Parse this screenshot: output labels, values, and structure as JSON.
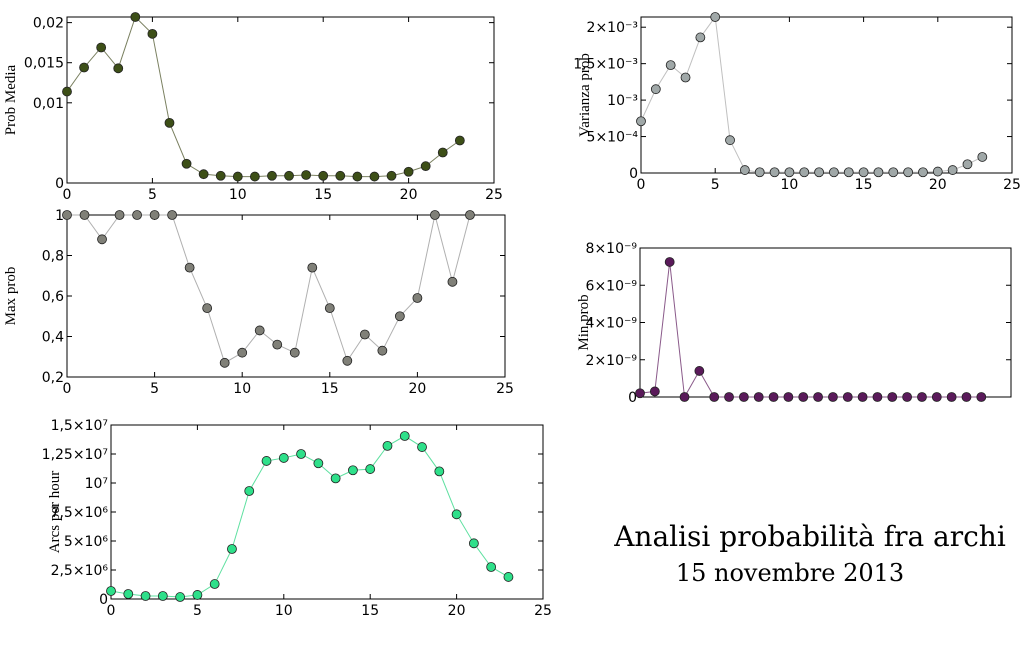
{
  "figure_title": "Analisi probabilità fra archi",
  "figure_subtitle": "15 novembre 2013",
  "chart_data": [
    {
      "type": "line",
      "y_label": "Prob Media",
      "color": "#3d4f17",
      "line_color": "#7a8060",
      "x": [
        0,
        1,
        2,
        3,
        4,
        5,
        6,
        7,
        8,
        9,
        10,
        11,
        12,
        13,
        14,
        15,
        16,
        17,
        18,
        19,
        20,
        21,
        22,
        23
      ],
      "values": [
        0.0114,
        0.0144,
        0.0169,
        0.0143,
        0.0207,
        0.0186,
        0.0075,
        0.0024,
        0.0011,
        0.0009,
        0.0008,
        0.0008,
        0.0009,
        0.0009,
        0.001,
        0.0009,
        0.0009,
        0.0008,
        0.0008,
        0.0009,
        0.0014,
        0.0021,
        0.0038,
        0.0053
      ],
      "xlim": [
        0,
        25
      ],
      "xticks": [
        0,
        5,
        10,
        15,
        20,
        25
      ],
      "ylim": [
        0,
        0.0207
      ],
      "yticks": [
        0,
        {
          "value": 0.01,
          "label": "0,01"
        },
        {
          "value": 0.015,
          "label": "0,015"
        },
        {
          "value": 0.02,
          "label": "0,02"
        }
      ]
    },
    {
      "type": "line",
      "y_label": "Max prob",
      "color": "#808078",
      "line_color": "#b0b0b0",
      "x": [
        0,
        1,
        2,
        3,
        4,
        5,
        6,
        7,
        8,
        9,
        10,
        11,
        12,
        13,
        14,
        15,
        16,
        17,
        18,
        19,
        20,
        21,
        22,
        23
      ],
      "values": [
        1,
        1,
        0.88,
        1,
        1,
        1,
        1,
        0.74,
        0.54,
        0.27,
        0.32,
        0.43,
        0.36,
        0.32,
        0.74,
        0.54,
        0.28,
        0.41,
        0.33,
        0.5,
        0.59,
        1,
        0.67,
        1
      ],
      "xlim": [
        0,
        25
      ],
      "xticks": [
        0,
        5,
        10,
        15,
        20,
        25
      ],
      "ylim": [
        0.2,
        1
      ],
      "yticks": [
        {
          "value": 0.2,
          "label": "0,2"
        },
        {
          "value": 0.4,
          "label": "0,4"
        },
        {
          "value": 0.6,
          "label": "0,6"
        },
        {
          "value": 0.8,
          "label": "0,8"
        },
        1
      ]
    },
    {
      "type": "line",
      "y_label": "Arcs per hour",
      "color": "#2ee08a",
      "line_color": "#5ee0a0",
      "x": [
        0,
        1,
        2,
        3,
        4,
        5,
        6,
        7,
        8,
        9,
        10,
        11,
        12,
        13,
        14,
        15,
        16,
        17,
        18,
        19,
        20,
        21,
        22,
        23
      ],
      "values": [
        690000,
        430000,
        260000,
        260000,
        170000,
        350000,
        1290000,
        4310000,
        9310000,
        11900000,
        12160000,
        12500000,
        11700000,
        10400000,
        11100000,
        11200000,
        13200000,
        14050000,
        13100000,
        11000000,
        7300000,
        4800000,
        2760000,
        1900000
      ],
      "xlim": [
        0,
        25
      ],
      "xticks": [
        0,
        5,
        10,
        15,
        20,
        25
      ],
      "ylim": [
        0,
        15000000
      ],
      "yticks": [
        0,
        {
          "value": 2500000,
          "label": "2,5×10⁶"
        },
        {
          "value": 5000000,
          "label": "5×10⁶"
        },
        {
          "value": 7500000,
          "label": "7,5×10⁶"
        },
        {
          "value": 10000000,
          "label": "10⁷"
        },
        {
          "value": 12500000,
          "label": "1,25×10⁷"
        },
        {
          "value": 15000000,
          "label": "1,5×10⁷"
        }
      ]
    },
    {
      "type": "line",
      "y_label": "Varianza prob",
      "color": "#a0a8a8",
      "line_color": "#c0c0c0",
      "x": [
        0,
        1,
        2,
        3,
        4,
        5,
        6,
        7,
        8,
        9,
        10,
        11,
        12,
        13,
        14,
        15,
        16,
        17,
        18,
        19,
        20,
        21,
        22,
        23
      ],
      "values": [
        0.00071,
        0.00115,
        0.00148,
        0.00131,
        0.00186,
        0.00214,
        0.00045,
        4e-05,
        1e-05,
        1e-05,
        1e-05,
        1e-05,
        1e-05,
        1e-05,
        1e-05,
        1e-05,
        1e-05,
        1e-05,
        1e-05,
        1e-05,
        2e-05,
        4e-05,
        0.00012,
        0.00022
      ],
      "xlim": [
        0,
        25
      ],
      "xticks": [
        0,
        5,
        10,
        15,
        20,
        25
      ],
      "ylim": [
        0,
        0.00214
      ],
      "yticks": [
        0,
        {
          "value": 0.0005,
          "label": "5×10⁻⁴"
        },
        {
          "value": 0.001,
          "label": "10⁻³"
        },
        {
          "value": 0.0015,
          "label": "1,5×10⁻³"
        },
        {
          "value": 0.002,
          "label": "2×10⁻³"
        }
      ]
    },
    {
      "type": "line",
      "y_label": "Min prob",
      "color": "#5a1a5a",
      "line_color": "#8a5a8a",
      "x": [
        0,
        1,
        2,
        3,
        4,
        5,
        6,
        7,
        8,
        9,
        10,
        11,
        12,
        13,
        14,
        15,
        16,
        17,
        18,
        19,
        20,
        21,
        22,
        23
      ],
      "values": [
        2e-10,
        3e-10,
        7.25e-09,
        0,
        1.4e-09,
        0,
        0,
        0,
        0,
        0,
        0,
        0,
        0,
        0,
        0,
        0,
        0,
        0,
        0,
        0,
        0,
        0,
        0,
        0
      ],
      "xlim": [
        0,
        25
      ],
      "ylim": [
        0,
        8e-09
      ],
      "yticks": [
        0,
        {
          "value": 2e-09,
          "label": "2×10⁻⁹"
        },
        {
          "value": 4e-09,
          "label": "4×10⁻⁹"
        },
        {
          "value": 6e-09,
          "label": "6×10⁻⁹"
        },
        {
          "value": 8e-09,
          "label": "8×10⁻⁹"
        }
      ]
    }
  ]
}
